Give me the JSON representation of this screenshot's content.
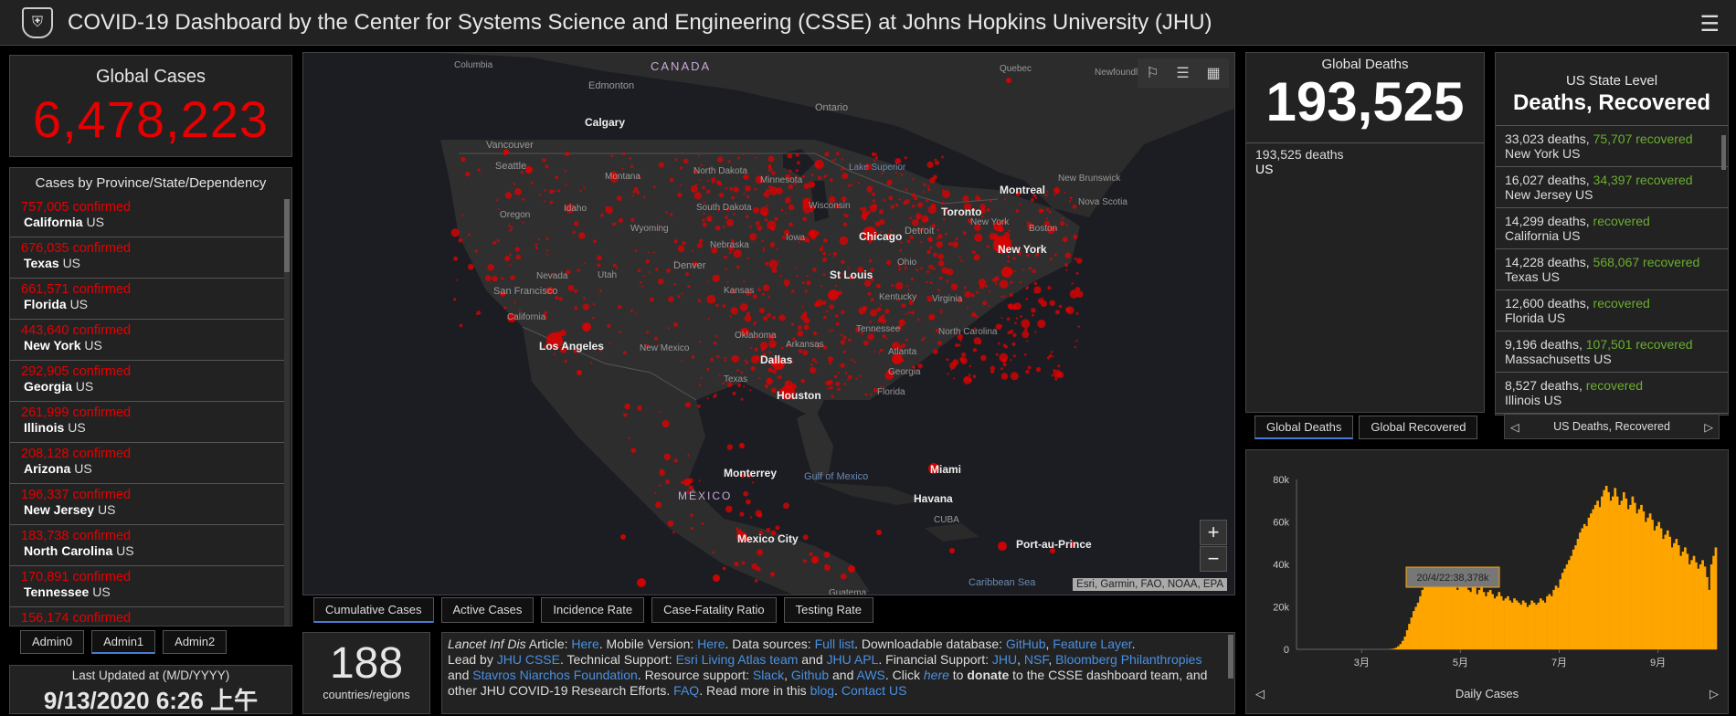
{
  "header": {
    "title": "COVID-19 Dashboard by the Center for Systems Science and Engineering (CSSE) at Johns Hopkins University (JHU)",
    "logo_icon": "shield-icon",
    "menu_icon": "hamburger-icon"
  },
  "global_cases": {
    "label": "Global Cases",
    "value": "6,478,223"
  },
  "cases_list": {
    "header": "Cases by Province/State/Dependency",
    "items": [
      {
        "value": "757,005",
        "unit": "confirmed",
        "name": "California",
        "country": "US"
      },
      {
        "value": "676,035",
        "unit": "confirmed",
        "name": "Texas",
        "country": "US"
      },
      {
        "value": "661,571",
        "unit": "confirmed",
        "name": "Florida",
        "country": "US"
      },
      {
        "value": "443,640",
        "unit": "confirmed",
        "name": "New York",
        "country": "US"
      },
      {
        "value": "292,905",
        "unit": "confirmed",
        "name": "Georgia",
        "country": "US"
      },
      {
        "value": "261,999",
        "unit": "confirmed",
        "name": "Illinois",
        "country": "US"
      },
      {
        "value": "208,128",
        "unit": "confirmed",
        "name": "Arizona",
        "country": "US"
      },
      {
        "value": "196,337",
        "unit": "confirmed",
        "name": "New Jersey",
        "country": "US"
      },
      {
        "value": "183,738",
        "unit": "confirmed",
        "name": "North Carolina",
        "country": "US"
      },
      {
        "value": "170,891",
        "unit": "confirmed",
        "name": "Tennessee",
        "country": "US"
      },
      {
        "value": "156,174",
        "unit": "confirmed",
        "name": "",
        "country": ""
      }
    ]
  },
  "admin_tabs": [
    "Admin0",
    "Admin1",
    "Admin2"
  ],
  "last_updated": {
    "label": "Last Updated at (M/D/YYYY)",
    "value": "9/13/2020 6:26 上午"
  },
  "map": {
    "attribution": "Esri, Garmin, FAO, NOAA, EPA",
    "zoom_in": "+",
    "zoom_out": "−",
    "labels": {
      "canada": "CANADA",
      "columbia": "Columbia",
      "edmonton": "Edmonton",
      "calgary": "Calgary",
      "vancouver": "Vancouver",
      "seattle": "Seattle",
      "quebec": "Quebec",
      "newfoundland": "Newfoundl and Labra",
      "ontario": "Ontario",
      "north_dakota": "North Dakota",
      "montana": "Montana",
      "minnesota": "Minnesota",
      "lake_superior": "Lake Superior",
      "montreal": "Montreal",
      "new_brunswick": "New Brunswick",
      "nova_scotia": "Nova Scotia",
      "toronto": "Toronto",
      "new_york_state": "New York",
      "boston": "Boston",
      "oregon": "Oregon",
      "idaho": "Idaho",
      "south_dakota": "South Dakota",
      "wisconsin": "Wisconsin",
      "wyoming": "Wyoming",
      "chicago": "Chicago",
      "detroit": "Detroit",
      "new_york": "New York",
      "iowa": "Iowa",
      "nebraska": "Nebraska",
      "nevada": "Nevada",
      "utah": "Utah",
      "denver": "Denver",
      "san_francisco": "San Francisco",
      "st_louis": "St Louis",
      "ohio": "Ohio",
      "kansas": "Kansas",
      "california": "California",
      "kentucky": "Kentucky",
      "virginia": "Virginia",
      "los_angeles": "Los Angeles",
      "new_mexico": "New Mexico",
      "oklahoma": "Oklahoma",
      "arkansas": "Arkansas",
      "tennessee": "Tennessee",
      "north_carolina": "North Carolina",
      "dallas": "Dallas",
      "atlanta": "Atlanta",
      "texas": "Texas",
      "georgia": "Georgia",
      "houston": "Houston",
      "florida": "Florida",
      "monterrey": "Monterrey",
      "gulf": "Gulf of Mexico",
      "miami": "Miami",
      "mexico": "MÉXICO",
      "havana": "Havana",
      "cuba": "CUBA",
      "mexico_city": "Mexico City",
      "port_au_prince": "Port-au-Prince",
      "guatema": "Guatema",
      "caribbean": "Caribbean Sea"
    }
  },
  "map_tabs": [
    "Cumulative Cases",
    "Active Cases",
    "Incidence Rate",
    "Case-Fatality Ratio",
    "Testing Rate"
  ],
  "countries": {
    "value": "188",
    "label": "countries/regions"
  },
  "info": {
    "lancet": "Lancet Inf Dis",
    "article": " Article: ",
    "here1": "Here",
    "mobile": ". Mobile Version: ",
    "here2": "Here",
    "sources": ". Data sources: ",
    "full_list": "Full list",
    "db": ". Downloadable database: ",
    "github": "GitHub",
    "comma": ", ",
    "feature": "Feature Layer",
    "period": ".",
    "lead": "Lead by ",
    "jhu_csse": "JHU CSSE",
    "tech": ". Technical Support: ",
    "esri": "Esri Living Atlas team",
    "and": " and ",
    "jhu_apl": "JHU APL",
    "fin": ". Financial Support: ",
    "jhu": "JHU",
    "nsf": "NSF",
    "bloomberg": "Bloomberg Philanthropies",
    "and2": " and ",
    "stavros": "Stavros Niarchos Foundation",
    "resource": ". Resource support: ",
    "slack": "Slack",
    "github2": "Github",
    "aws": "AWS",
    "click": ". Click ",
    "here3": "here",
    "to": " to ",
    "donate": "donate",
    "rest": " to the CSSE dashboard team, and other JHU COVID-19 Research Efforts. ",
    "faq": "FAQ",
    "read": ". Read more in this ",
    "blog": "blog",
    "contact": "Contact US"
  },
  "global_deaths": {
    "label": "Global Deaths",
    "value": "193,525",
    "item_value": "193,525",
    "item_unit": "deaths",
    "item_country": "US"
  },
  "gd_tabs": [
    "Global Deaths",
    "Global Recovered"
  ],
  "us_state": {
    "label": "US State Level",
    "title": "Deaths, Recovered",
    "items": [
      {
        "deaths": "33,023",
        "recovered": "75,707",
        "name": "New York",
        "country": "US"
      },
      {
        "deaths": "16,027",
        "recovered": "34,397",
        "name": "New Jersey",
        "country": "US"
      },
      {
        "deaths": "14,299",
        "recovered": "",
        "name": "California",
        "country": "US"
      },
      {
        "deaths": "14,228",
        "recovered": "568,067",
        "name": "Texas",
        "country": "US"
      },
      {
        "deaths": "12,600",
        "recovered": "",
        "name": "Florida",
        "country": "US"
      },
      {
        "deaths": "9,196",
        "recovered": "107,501",
        "name": "Massachusetts",
        "country": "US"
      },
      {
        "deaths": "8,527",
        "recovered": "",
        "name": "Illinois",
        "country": "US"
      }
    ],
    "deaths_word": "deaths,",
    "recovered_word": "recovered",
    "nav_label": "US Deaths, Recovered",
    "prev": "◁",
    "next": "▷"
  },
  "daily": {
    "nav_label": "Daily Cases",
    "prev": "◁",
    "next": "▷",
    "tooltip": "20/4/22:38,378k"
  },
  "colors": {
    "red": "#e60000",
    "green": "#6aae2e",
    "orange": "#ffa500",
    "link": "#4a90e2"
  },
  "chart_data": {
    "type": "bar",
    "title": "",
    "xlabel": "Daily Cases",
    "ylabel": "",
    "ylim": [
      0,
      80000
    ],
    "yticks": [
      "0",
      "20k",
      "40k",
      "60k",
      "80k"
    ],
    "xticks": [
      "3月",
      "5月",
      "7月",
      "9月"
    ],
    "values": [
      0,
      0,
      0,
      0,
      0,
      0,
      0,
      0,
      0,
      0,
      0,
      0,
      0,
      0,
      0,
      0,
      0,
      0,
      0,
      0,
      0,
      0,
      0,
      0,
      0,
      0,
      0,
      0,
      0,
      0,
      0,
      0,
      0,
      0,
      0,
      0,
      0,
      0,
      0,
      0,
      0,
      0,
      100,
      200,
      400,
      800,
      1500,
      2500,
      4000,
      6000,
      9000,
      12000,
      15000,
      18000,
      20000,
      22000,
      25000,
      28000,
      30000,
      32000,
      33000,
      34000,
      31000,
      29000,
      34000,
      35000,
      32000,
      31000,
      30000,
      33000,
      35000,
      31000,
      29000,
      28000,
      32000,
      30000,
      29000,
      31000,
      28000,
      27000,
      30000,
      29000,
      26000,
      28000,
      30000,
      27000,
      25000,
      27000,
      28000,
      26000,
      24000,
      25000,
      27000,
      25000,
      23000,
      24000,
      25000,
      23000,
      22000,
      24000,
      23000,
      22000,
      21000,
      23000,
      22000,
      20000,
      21000,
      23000,
      22000,
      21000,
      22000,
      24000,
      23000,
      22000,
      25000,
      26000,
      25000,
      28000,
      30000,
      29000,
      33000,
      36000,
      38000,
      40000,
      42000,
      44000,
      47000,
      49000,
      52000,
      55000,
      57000,
      59000,
      58000,
      62000,
      64000,
      66000,
      68000,
      70000,
      67000,
      72000,
      75000,
      77000,
      74000,
      70000,
      72000,
      76000,
      72000,
      68000,
      70000,
      74000,
      71000,
      66000,
      68000,
      72000,
      69000,
      64000,
      66000,
      68000,
      65000,
      60000,
      62000,
      64000,
      61000,
      56000,
      58000,
      60000,
      57000,
      52000,
      54000,
      56000,
      53000,
      48000,
      50000,
      52000,
      49000,
      44000,
      46000,
      48000,
      45000,
      40000,
      42000,
      44000,
      41000,
      38000,
      40000,
      42000,
      39000,
      34000,
      28000,
      40000,
      44000,
      48000
    ]
  }
}
